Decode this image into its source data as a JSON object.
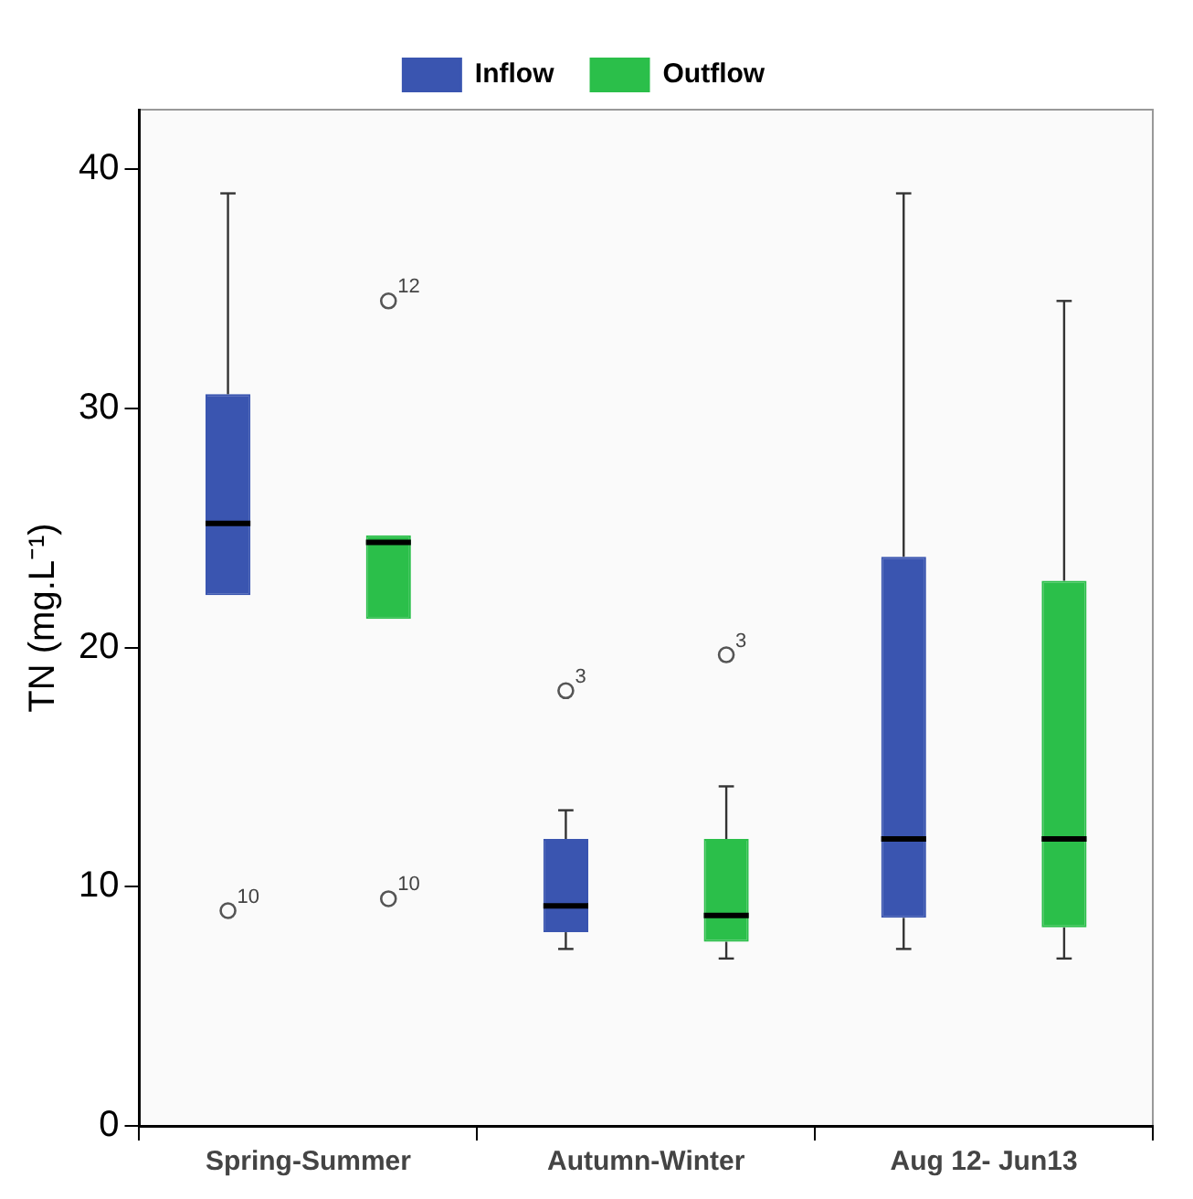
{
  "chart_data": {
    "type": "box",
    "ylabel": "TN (mg.L⁻¹)",
    "categories": [
      "Spring-Summer",
      "Autumn-Winter",
      "Aug 12- Jun13"
    ],
    "series": [
      {
        "name": "Inflow",
        "color": "#3a55b0",
        "boxes": [
          {
            "low": 22.2,
            "q1": 22.2,
            "median": 25.2,
            "q3": 30.6,
            "high": 39.0,
            "outliers": [
              9.0
            ]
          },
          {
            "low": 7.4,
            "q1": 8.1,
            "median": 9.2,
            "q3": 12.0,
            "high": 13.2,
            "outliers": [
              18.2
            ]
          },
          {
            "low": 7.4,
            "q1": 8.7,
            "median": 12.0,
            "q3": 23.8,
            "high": 39.0
          }
        ]
      },
      {
        "name": "Outflow",
        "color": "#2bbf4a",
        "boxes": [
          {
            "low": 21.2,
            "q1": 21.2,
            "median": 24.4,
            "q3": 24.7,
            "high": 24.7,
            "outliers": [
              34.5,
              9.5
            ]
          },
          {
            "low": 7.0,
            "q1": 7.7,
            "median": 8.8,
            "q3": 12.0,
            "high": 14.2,
            "outliers": [
              19.7
            ]
          },
          {
            "low": 7.0,
            "q1": 8.3,
            "median": 12.0,
            "q3": 22.8,
            "high": 34.5
          }
        ]
      }
    ],
    "ylim": [
      0,
      42.5
    ],
    "yticks": [
      0,
      10,
      20,
      30,
      40
    ],
    "grid": false,
    "legend": "top",
    "annotations": [
      "10",
      "3",
      "12",
      "10",
      "3"
    ]
  }
}
